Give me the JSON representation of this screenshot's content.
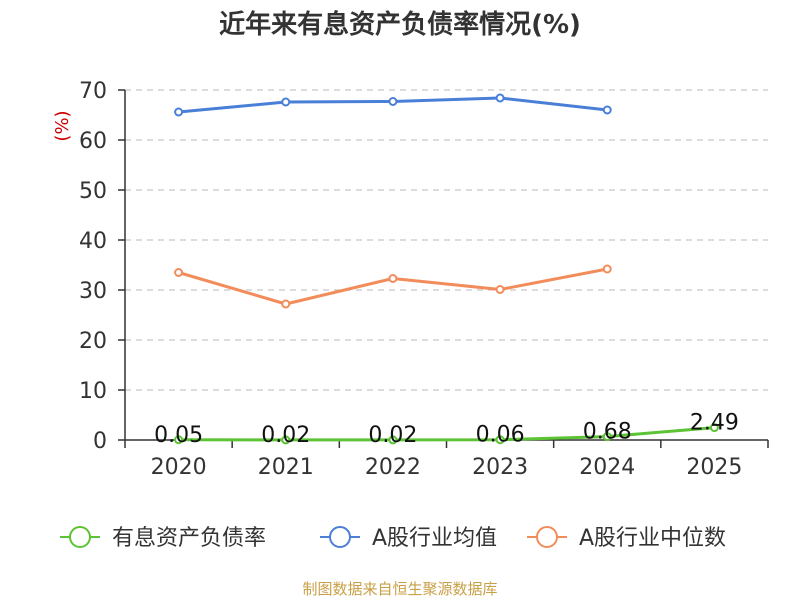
{
  "chart_data": {
    "type": "line",
    "title": "近年来有息资产负债率情况(%)",
    "ylabel": "(%)",
    "xlabel": "",
    "categories": [
      "2020",
      "2021",
      "2022",
      "2023",
      "2024",
      "2025"
    ],
    "ylim": [
      0,
      70
    ],
    "yticks": [
      0,
      10,
      20,
      30,
      40,
      50,
      60,
      70
    ],
    "grid": true,
    "legend_position": "bottom",
    "series": [
      {
        "name": "有息资产负债率",
        "color": "#5cc334",
        "values": [
          0.05,
          0.02,
          0.02,
          0.06,
          0.68,
          2.49
        ],
        "labels": [
          "0.05",
          "0.02",
          "0.02",
          "0.06",
          "0.68",
          "2.49"
        ]
      },
      {
        "name": "A股行业均值",
        "color": "#4a7fd8",
        "values": [
          65.6,
          67.6,
          67.7,
          68.4,
          66.0,
          null
        ]
      },
      {
        "name": "A股行业中位数",
        "color": "#f28c5a",
        "values": [
          33.5,
          27.2,
          32.3,
          30.1,
          34.2,
          null
        ]
      }
    ],
    "source": "制图数据来自恒生聚源数据库"
  }
}
